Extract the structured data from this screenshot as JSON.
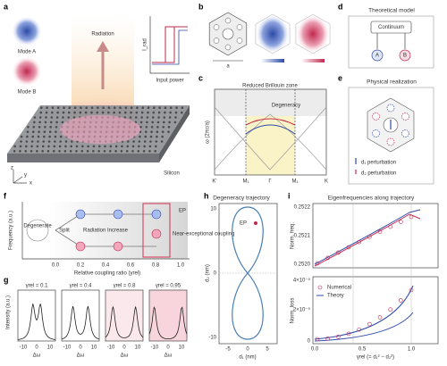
{
  "panels": {
    "a": {
      "label": "a",
      "mode_a": "Mode A",
      "mode_b": "Mode B",
      "radiation": "Radiation",
      "inset_y": "I_rad",
      "inset_x": "Input power",
      "material": "Silicon",
      "axes": [
        "x",
        "y",
        "z"
      ]
    },
    "b": {
      "label": "b",
      "cell_a": "a"
    },
    "c": {
      "label": "c",
      "title": "Reduced Brillouin zone",
      "annotation": "Degeneracy",
      "y_label": "ω (2πc/a)",
      "x_ticks": [
        "K'",
        "M₁",
        "Γ",
        "M₁",
        "K"
      ]
    },
    "d": {
      "label": "d",
      "title": "Theoretical model",
      "box": "Continuum",
      "nodes": [
        "A",
        "B"
      ]
    },
    "e": {
      "label": "e",
      "title": "Physical realization",
      "legend": [
        "d₁ perturbation",
        "d₂ perturbation"
      ]
    },
    "f": {
      "label": "f",
      "y_label": "Frequency (a.u.)",
      "x_label": "Relative coupling ratio (γrel)",
      "x_ticks": [
        "0.0",
        "0.2",
        "0.4",
        "0.6",
        "0.8",
        "1.0"
      ],
      "steps": [
        "Degenerate",
        "Split",
        "Radiation Increase"
      ],
      "ep": "EP",
      "highlight": "Near-exceptional coupling"
    },
    "g": {
      "label": "g",
      "y_label": "Intensity (a.u.)",
      "subplots": [
        {
          "title": "γrel = 0.1",
          "x_label": "Δω",
          "x_ticks": [
            "-10",
            "0",
            "10"
          ]
        },
        {
          "title": "γrel = 0.4",
          "x_label": "Δω",
          "x_ticks": [
            "-10",
            "0",
            "10"
          ]
        },
        {
          "title": "γrel = 0.8",
          "x_label": "Δω",
          "x_ticks": [
            "-10",
            "0",
            "10"
          ]
        },
        {
          "title": "γrel = 0.95",
          "x_label": "Δω",
          "x_ticks": [
            "-10",
            "0",
            "10"
          ]
        }
      ]
    },
    "h": {
      "label": "h",
      "title": "Degeneracy trajectory",
      "ep": "EP",
      "y_label": "d₂ (nm)",
      "x_label": "d₁ (nm)",
      "y_ticks": [
        "10",
        "0",
        "-10"
      ],
      "x_ticks": [
        "-5",
        "0",
        "5"
      ]
    },
    "i": {
      "label": "i",
      "title": "Eigenfrequencies along trajectory",
      "top_y_label": "Norm. freq.",
      "top_y_ticks": [
        "0.2522",
        "0.2521",
        "0.2520"
      ],
      "bottom_y_label": "Norm. loss",
      "bottom_y_ticks": [
        "4×10⁻⁵",
        "2×10⁻⁵",
        "0"
      ],
      "x_label": "γrel (= d₁² − d₂²)",
      "x_ticks": [
        "0.0",
        "0.5",
        "1.0"
      ],
      "legend": [
        "Numerical",
        "Theory"
      ]
    }
  }
}
